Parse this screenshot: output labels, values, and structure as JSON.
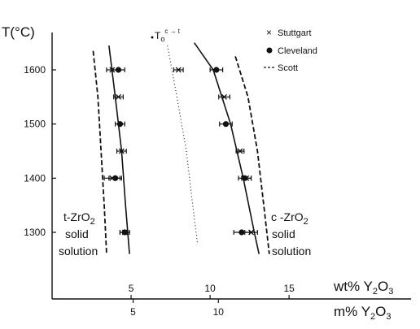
{
  "chart_data": {
    "type": "scatter",
    "title": "",
    "ylabel": "T(°C)",
    "yticks": [
      1300,
      1400,
      1500,
      1600
    ],
    "ylim": [
      1240,
      1665
    ],
    "xlabel_wt": {
      "main": "wt% Y",
      "sub1": "2",
      "mid": "O",
      "sub2": "3"
    },
    "xlabel_m": {
      "main": "m% Y",
      "sub1": "2",
      "mid": "O",
      "sub2": "3"
    },
    "xlim_wt": [
      0,
      16.9
    ],
    "xticks_wt": [
      5,
      10,
      15
    ],
    "xticks_m": [
      5,
      10
    ],
    "legend": {
      "placement": "top-right",
      "entries": [
        {
          "marker": "cross",
          "label": "Stuttgart"
        },
        {
          "marker": "dot",
          "label": "Cleveland"
        },
        {
          "marker": "dashed",
          "label": "Scott"
        }
      ]
    },
    "regions": [
      {
        "line1": "t-ZrO",
        "sub": "2",
        "line2": "solid",
        "line3": "solution"
      },
      {
        "line1": "c -ZrO",
        "sub": "2",
        "line2": "solid",
        "line3": "solution"
      }
    ],
    "annotation": {
      "main": "T",
      "sub": "o",
      "sup": "c → t"
    },
    "series": [
      {
        "name": "Stuttgart",
        "marker": "cross",
        "points": [
          {
            "x": 3.8,
            "y": 1600,
            "xerr": 0.35
          },
          {
            "x": 4.2,
            "y": 1550,
            "xerr": 0.3
          },
          {
            "x": 4.4,
            "y": 1450,
            "xerr": 0.3
          },
          {
            "x": 3.8,
            "y": 1400,
            "xerr": 0.5
          },
          {
            "x": 4.6,
            "y": 1300,
            "xerr": 0.3
          },
          {
            "x": 8.0,
            "y": 1600,
            "xerr": 0.3
          },
          {
            "x": 10.9,
            "y": 1550,
            "xerr": 0.35
          },
          {
            "x": 11.9,
            "y": 1450,
            "xerr": 0.25
          },
          {
            "x": 12.3,
            "y": 1400,
            "xerr": 0.3
          },
          {
            "x": 12.6,
            "y": 1300,
            "xerr": 0.4
          }
        ]
      },
      {
        "name": "Cleveland",
        "marker": "dot",
        "points": [
          {
            "x": 4.2,
            "y": 1600,
            "xerr": 0.4
          },
          {
            "x": 4.3,
            "y": 1500,
            "xerr": 0.3
          },
          {
            "x": 4.0,
            "y": 1400,
            "xerr": 0.4
          },
          {
            "x": 4.6,
            "y": 1300,
            "xerr": 0.3
          },
          {
            "x": 10.4,
            "y": 1600,
            "xerr": 0.4
          },
          {
            "x": 11.0,
            "y": 1500,
            "xerr": 0.4
          },
          {
            "x": 12.2,
            "y": 1400,
            "xerr": 0.4
          },
          {
            "x": 12.0,
            "y": 1300,
            "xerr": 0.5
          }
        ]
      }
    ],
    "curves": [
      {
        "style": "solid",
        "points": [
          [
            3.6,
            1645
          ],
          [
            4.0,
            1550
          ],
          [
            4.4,
            1450
          ],
          [
            4.65,
            1350
          ],
          [
            4.9,
            1260
          ]
        ]
      },
      {
        "style": "solid",
        "points": [
          [
            9.0,
            1650
          ],
          [
            10.2,
            1600
          ],
          [
            11.3,
            1500
          ],
          [
            12.1,
            1400
          ],
          [
            12.8,
            1300
          ],
          [
            13.1,
            1260
          ]
        ]
      },
      {
        "style": "dashed",
        "points": [
          [
            2.6,
            1635
          ],
          [
            2.9,
            1550
          ],
          [
            3.1,
            1450
          ],
          [
            3.3,
            1350
          ],
          [
            3.45,
            1260
          ]
        ]
      },
      {
        "style": "dashed",
        "points": [
          [
            11.6,
            1625
          ],
          [
            12.4,
            1550
          ],
          [
            13.0,
            1450
          ],
          [
            13.4,
            1350
          ],
          [
            13.75,
            1260
          ]
        ]
      },
      {
        "style": "dotted",
        "points": [
          [
            7.3,
            1645
          ],
          [
            7.9,
            1550
          ],
          [
            8.5,
            1450
          ],
          [
            8.9,
            1350
          ],
          [
            9.2,
            1280
          ]
        ]
      }
    ]
  }
}
